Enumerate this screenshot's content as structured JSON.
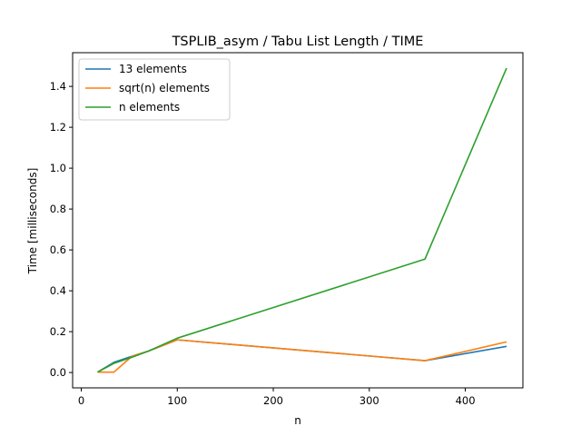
{
  "chart_data": {
    "type": "line",
    "title": "TSPLIB_asym / Tabu List Length / TIME",
    "xlabel": "n",
    "ylabel": "Time [milliseconds]",
    "xlim": [
      -9,
      460
    ],
    "ylim": [
      -0.075,
      1.565
    ],
    "xticks": [
      0,
      100,
      200,
      300,
      400
    ],
    "yticks": [
      0.0,
      0.2,
      0.4,
      0.6,
      0.8,
      1.0,
      1.2,
      1.4
    ],
    "ytick_labels": [
      "0.0",
      "0.2",
      "0.4",
      "0.6",
      "0.8",
      "1.0",
      "1.2",
      "1.4"
    ],
    "grid": false,
    "legend_position": "upper-left",
    "series": [
      {
        "name": "13 elements",
        "color": "#1f77b4",
        "x": [
          17,
          34,
          53,
          70,
          100,
          358,
          443
        ],
        "y": [
          0.002,
          0.05,
          0.08,
          0.105,
          0.16,
          0.058,
          0.128
        ]
      },
      {
        "name": "sqrt(n) elements",
        "color": "#ff7f0e",
        "x": [
          17,
          34,
          53,
          70,
          100,
          358,
          443
        ],
        "y": [
          0.002,
          0.002,
          0.08,
          0.105,
          0.16,
          0.058,
          0.15
        ]
      },
      {
        "name": "n elements",
        "color": "#2ca02c",
        "x": [
          17,
          34,
          53,
          70,
          100,
          358,
          443
        ],
        "y": [
          0.002,
          0.045,
          0.075,
          0.105,
          0.168,
          0.555,
          1.49
        ]
      }
    ]
  }
}
